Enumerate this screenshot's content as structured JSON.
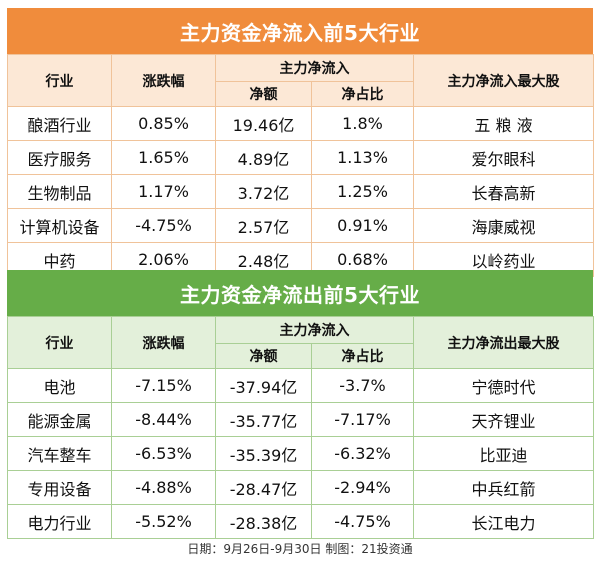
{
  "inflow": {
    "title": "主力资金净流入前5大行业",
    "headers": {
      "industry": "行业",
      "change": "涨跌幅",
      "net_group": "主力净流入",
      "net_amount": "净额",
      "net_ratio": "净占比",
      "top_stock": "主力净流入最大股"
    },
    "rows": [
      {
        "industry": "酿酒行业",
        "change": "0.85%",
        "amount": "19.46亿",
        "ratio": "1.8%",
        "stock": "五 粮 液"
      },
      {
        "industry": "医疗服务",
        "change": "1.65%",
        "amount": "4.89亿",
        "ratio": "1.13%",
        "stock": "爱尔眼科"
      },
      {
        "industry": "生物制品",
        "change": "1.17%",
        "amount": "3.72亿",
        "ratio": "1.25%",
        "stock": "长春高新"
      },
      {
        "industry": "计算机设备",
        "change": "-4.75%",
        "amount": "2.57亿",
        "ratio": "0.91%",
        "stock": "海康威视"
      },
      {
        "industry": "中药",
        "change": "2.06%",
        "amount": "2.48亿",
        "ratio": "0.68%",
        "stock": "以岭药业"
      }
    ]
  },
  "outflow": {
    "title": "主力资金净流出前5大行业",
    "headers": {
      "industry": "行业",
      "change": "涨跌幅",
      "net_group": "主力净流入",
      "net_amount": "净额",
      "net_ratio": "净占比",
      "top_stock": "主力净流出最大股"
    },
    "rows": [
      {
        "industry": "电池",
        "change": "-7.15%",
        "amount": "-37.94亿",
        "ratio": "-3.7%",
        "stock": "宁德时代"
      },
      {
        "industry": "能源金属",
        "change": "-8.44%",
        "amount": "-35.77亿",
        "ratio": "-7.17%",
        "stock": "天齐锂业"
      },
      {
        "industry": "汽车整车",
        "change": "-6.53%",
        "amount": "-35.39亿",
        "ratio": "-6.32%",
        "stock": "比亚迪"
      },
      {
        "industry": "专用设备",
        "change": "-4.88%",
        "amount": "-28.47亿",
        "ratio": "-2.94%",
        "stock": "中兵红箭"
      },
      {
        "industry": "电力行业",
        "change": "-5.52%",
        "amount": "-28.38亿",
        "ratio": "-4.75%",
        "stock": "长江电力"
      }
    ]
  },
  "footer": "日期：9月26日-9月30日 制图：21投资通",
  "colors": {
    "inflow_title": "#f08c3c",
    "inflow_header": "#fce8d6",
    "outflow_title": "#66ad48",
    "outflow_header": "#e3f0da"
  }
}
